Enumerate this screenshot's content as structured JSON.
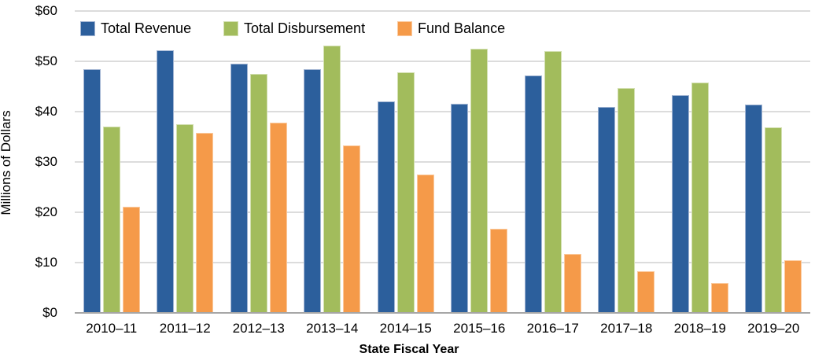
{
  "chart_data": {
    "type": "bar",
    "title": "",
    "xlabel": "State Fiscal Year",
    "ylabel": "Millions of Dollars",
    "categories": [
      "2010–11",
      "2011–12",
      "2012–13",
      "2013–14",
      "2014–15",
      "2015–16",
      "2016–17",
      "2017–18",
      "2018–19",
      "2019–20"
    ],
    "series": [
      {
        "name": "Total Revenue",
        "color": "#2C5F9C",
        "border_color": "#A2B5D3",
        "values": [
          48.3,
          52.0,
          49.3,
          48.3,
          41.9,
          41.4,
          47.0,
          40.8,
          43.1,
          41.2
        ]
      },
      {
        "name": "Total Disbursement",
        "color": "#A2BC5C",
        "border_color": "#D2DFB0",
        "values": [
          36.8,
          37.3,
          47.4,
          52.9,
          47.6,
          52.3,
          51.8,
          44.5,
          45.6,
          36.7
        ]
      },
      {
        "name": "Fund Balance",
        "color": "#F59A49",
        "border_color": "#FBCA9E",
        "values": [
          21.0,
          35.7,
          37.7,
          33.1,
          27.4,
          16.5,
          11.6,
          8.1,
          5.8,
          10.3
        ]
      }
    ],
    "ylim": [
      0,
      60
    ],
    "ytick_step": 10,
    "ytick_prefix": "$",
    "yticks": [
      "$0",
      "$10",
      "$20",
      "$30",
      "$40",
      "$50",
      "$60"
    ],
    "grid": "horizontal",
    "legend_position": "top-left",
    "axis_colors": {
      "gridline": "#DCDCDC",
      "baseline": "#A6A6A6",
      "text": "#000000"
    }
  }
}
